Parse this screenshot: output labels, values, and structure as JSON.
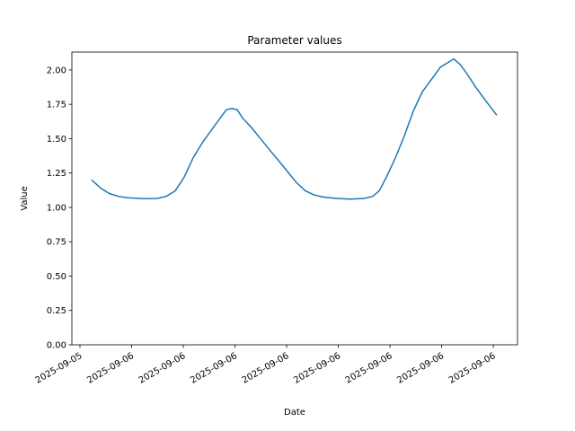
{
  "chart_data": {
    "type": "line",
    "title": "Parameter values",
    "x_label": "Date",
    "y_label": "Value",
    "x": [
      0.68,
      1.2,
      1.72,
      2.24,
      2.76,
      3.7,
      4.49,
      5.0,
      5.53,
      6.05,
      6.57,
      7.1,
      7.62,
      8.14,
      8.5,
      8.82,
      9.13,
      9.44,
      9.96,
      10.48,
      11.0,
      11.53,
      12.05,
      12.57,
      13.09,
      13.61,
      14.13,
      14.92,
      15.7,
      16.48,
      17.0,
      17.37,
      17.79,
      18.31,
      18.83,
      19.35,
      19.87,
      20.4,
      20.92,
      21.44,
      21.7,
      22.07,
      22.48,
      23.0,
      23.53,
      24.2
    ],
    "series": [
      {
        "name": "Value",
        "color": "#1f77b4",
        "values": [
          1.2,
          1.14,
          1.1,
          1.08,
          1.07,
          1.063,
          1.065,
          1.08,
          1.12,
          1.22,
          1.36,
          1.47,
          1.56,
          1.65,
          1.71,
          1.72,
          1.71,
          1.65,
          1.58,
          1.5,
          1.42,
          1.34,
          1.26,
          1.18,
          1.12,
          1.09,
          1.075,
          1.065,
          1.06,
          1.065,
          1.08,
          1.12,
          1.22,
          1.36,
          1.52,
          1.7,
          1.84,
          1.93,
          2.02,
          2.06,
          2.08,
          2.04,
          1.97,
          1.87,
          1.78,
          1.67
        ]
      }
    ],
    "xlim": [
      -0.47,
      25.4
    ],
    "xticks": [
      {
        "value": 0,
        "label": "2025-09-05"
      },
      {
        "value": 3,
        "label": "2025-09-06"
      },
      {
        "value": 6,
        "label": "2025-09-06"
      },
      {
        "value": 9,
        "label": "2025-09-06"
      },
      {
        "value": 12,
        "label": "2025-09-06"
      },
      {
        "value": 15,
        "label": "2025-09-06"
      },
      {
        "value": 18,
        "label": "2025-09-06"
      },
      {
        "value": 21,
        "label": "2025-09-06"
      },
      {
        "value": 24,
        "label": "2025-09-06"
      }
    ],
    "ylim": [
      0,
      2.13
    ],
    "yticks": [
      {
        "value": 0,
        "label": "0.00"
      },
      {
        "value": 0.25,
        "label": "0.25"
      },
      {
        "value": 0.5,
        "label": "0.50"
      },
      {
        "value": 0.75,
        "label": "0.75"
      },
      {
        "value": 1,
        "label": "1.00"
      },
      {
        "value": 1.25,
        "label": "1.25"
      },
      {
        "value": 1.5,
        "label": "1.50"
      },
      {
        "value": 1.75,
        "label": "1.75"
      },
      {
        "value": 2,
        "label": "2.00"
      }
    ],
    "grid": false
  }
}
